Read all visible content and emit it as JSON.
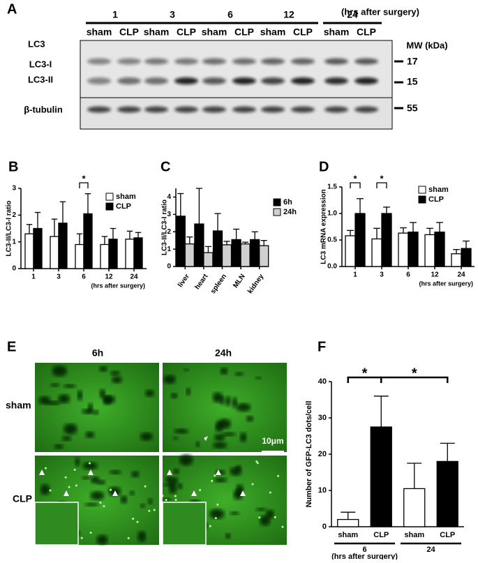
{
  "panel_a": {
    "label": "A",
    "timepoints": [
      "1",
      "3",
      "6",
      "12",
      "24"
    ],
    "time_unit": "(hrs after surgery)",
    "lanes": [
      "sham",
      "CLP",
      "sham",
      "CLP",
      "sham",
      "CLP",
      "sham",
      "CLP",
      "sham",
      "CLP"
    ],
    "blot_title": "LC3",
    "mw_label": "MW (kDa)",
    "bands": [
      "LC3-I",
      "LC3-II"
    ],
    "loading": "β-tubulin",
    "markers": [
      "17",
      "15",
      "55"
    ]
  },
  "chart_data": [
    {
      "type": "bar",
      "panel": "B",
      "ylabel": "LC3-II/LC3-I ratio",
      "xlabel": "(hrs after surgery)",
      "categories": [
        "1",
        "3",
        "6",
        "12",
        "24"
      ],
      "series": [
        {
          "name": "sham",
          "color": "#ffffff",
          "values": [
            1.3,
            1.2,
            0.9,
            0.9,
            1.1
          ],
          "errors": [
            0.35,
            0.65,
            0.4,
            0.3,
            0.3
          ]
        },
        {
          "name": "CLP",
          "color": "#000000",
          "values": [
            1.5,
            1.7,
            2.05,
            1.1,
            1.15
          ],
          "errors": [
            0.6,
            0.8,
            0.75,
            0.4,
            0.2
          ]
        }
      ],
      "ylim": [
        0,
        3
      ],
      "yticks": [
        0,
        1,
        2,
        3
      ],
      "legend": "upper-right",
      "annotations": [
        "*"
      ]
    },
    {
      "type": "bar",
      "panel": "C",
      "ylabel": "LC3-II/LC3-I ratio",
      "categories": [
        "liver",
        "heart",
        "spleen",
        "MLN",
        "kidney"
      ],
      "series": [
        {
          "name": "6h",
          "color": "#000000",
          "values": [
            2.9,
            2.45,
            2.05,
            1.55,
            1.55
          ],
          "errors": [
            1.3,
            2.05,
            1.0,
            0.6,
            0.45
          ]
        },
        {
          "name": "24h",
          "color": "#d0d0d0",
          "values": [
            1.3,
            0.8,
            1.25,
            1.3,
            1.2
          ],
          "errors": [
            0.4,
            0.35,
            0.2,
            0.1,
            0.3
          ]
        }
      ],
      "ylim": [
        0,
        4.5
      ],
      "yticks": [
        0,
        1,
        2,
        3,
        4
      ],
      "legend": "right",
      "annotations": []
    },
    {
      "type": "bar",
      "panel": "D",
      "ylabel": "LC3 mRNA expression",
      "xlabel": "(hrs after surgery)",
      "categories": [
        "1",
        "3",
        "6",
        "12",
        "24"
      ],
      "series": [
        {
          "name": "sham",
          "color": "#ffffff",
          "values": [
            0.58,
            0.52,
            0.63,
            0.6,
            0.24
          ],
          "errors": [
            0.1,
            0.2,
            0.1,
            0.12,
            0.08
          ]
        },
        {
          "name": "CLP",
          "color": "#000000",
          "values": [
            1.0,
            1.0,
            0.65,
            0.65,
            0.34
          ],
          "errors": [
            0.28,
            0.12,
            0.18,
            0.18,
            0.14
          ]
        }
      ],
      "ylim": [
        0,
        1.5
      ],
      "yticks": [
        {
          "value": 0,
          "label": "0.0"
        },
        0.5,
        {
          "value": 1,
          "label": "1.0"
        },
        1.5
      ],
      "legend": "upper-right",
      "annotations": [
        "*",
        "*"
      ]
    },
    {
      "type": "bar",
      "panel": "F",
      "ylabel": "Number of GFP-LC3 dots/cell",
      "xlabel": "(hrs after surgery)",
      "categories": [
        "sham",
        "CLP",
        "sham",
        "CLP"
      ],
      "groups": [
        "6",
        "24"
      ],
      "series": [
        {
          "colors": [
            "#ffffff",
            "#000000",
            "#ffffff",
            "#000000"
          ],
          "values": [
            2,
            27.5,
            10.5,
            18
          ],
          "errors": [
            2,
            8.5,
            7,
            5
          ]
        }
      ],
      "ylim": [
        0,
        40
      ],
      "yticks": [
        0,
        10,
        20,
        30,
        40
      ],
      "annotations": [
        "*",
        "*"
      ]
    }
  ],
  "panel_e": {
    "label": "E",
    "columns": [
      "6h",
      "24h"
    ],
    "rows": [
      "sham",
      "CLP"
    ],
    "scale_bar": "10μm"
  }
}
